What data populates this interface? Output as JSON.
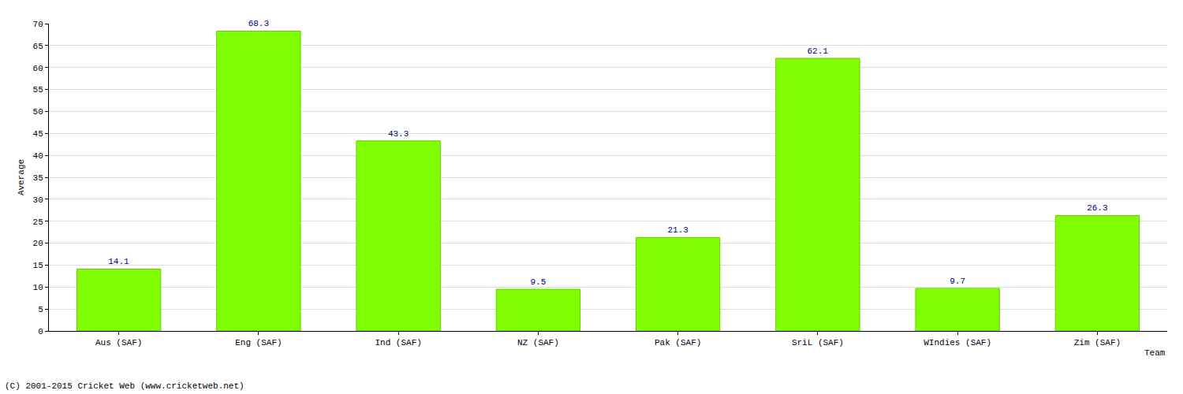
{
  "chart_data": {
    "type": "bar",
    "categories": [
      "Aus (SAF)",
      "Eng (SAF)",
      "Ind (SAF)",
      "NZ (SAF)",
      "Pak (SAF)",
      "SriL (SAF)",
      "WIndies (SAF)",
      "Zim (SAF)"
    ],
    "values": [
      14.1,
      68.3,
      43.3,
      9.5,
      21.3,
      62.1,
      9.7,
      26.3
    ],
    "color": "#80ff00",
    "x_label": "Team",
    "y_label": "Average",
    "annotations": [
      "(C) 2001-2015 Cricket Web (www.cricketweb.net)"
    ],
    "ylim": [
      0,
      70
    ],
    "yticks": [
      0,
      5,
      10,
      15,
      20,
      25,
      30,
      35,
      40,
      45,
      50,
      55,
      60,
      65,
      70
    ],
    "grid": true,
    "data_labels": true
  }
}
